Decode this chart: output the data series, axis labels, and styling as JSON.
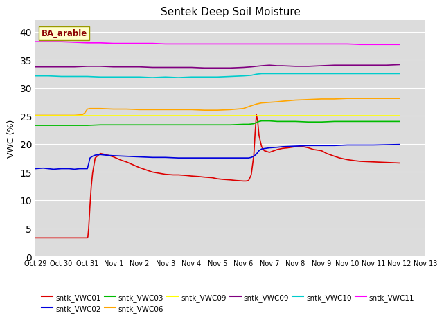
{
  "title": "Sentek Deep Soil Moisture",
  "ylabel": "VWC (%)",
  "annotation": "BA_arable",
  "ylim": [
    0,
    42
  ],
  "yticks": [
    0,
    5,
    10,
    15,
    20,
    25,
    30,
    35,
    40
  ],
  "background_color": "#dcdcdc",
  "xtick_labels": [
    "Oct 29",
    "Oct 30",
    "Oct 31",
    "Nov 1",
    "Nov 2",
    "Nov 3",
    "Nov 4",
    "Nov 5",
    "Nov 6",
    "Nov 7",
    "Nov 8",
    "Nov 9",
    "Nov 10",
    "Nov 11",
    "Nov 12",
    "Nov 13"
  ],
  "series": [
    {
      "name": "sntk_VWC01",
      "color": "#dd0000",
      "points": [
        [
          0,
          3.3
        ],
        [
          1,
          3.3
        ],
        [
          2,
          3.3
        ],
        [
          2.02,
          3.5
        ],
        [
          2.05,
          5.0
        ],
        [
          2.1,
          9.0
        ],
        [
          2.15,
          12.5
        ],
        [
          2.2,
          14.8
        ],
        [
          2.3,
          17.5
        ],
        [
          2.5,
          18.3
        ],
        [
          2.7,
          18.1
        ],
        [
          3.0,
          17.7
        ],
        [
          3.3,
          17.1
        ],
        [
          3.5,
          16.8
        ],
        [
          4.0,
          15.8
        ],
        [
          4.5,
          15.0
        ],
        [
          5.0,
          14.6
        ],
        [
          5.3,
          14.5
        ],
        [
          5.5,
          14.5
        ],
        [
          5.8,
          14.4
        ],
        [
          6.0,
          14.3
        ],
        [
          6.3,
          14.2
        ],
        [
          6.5,
          14.1
        ],
        [
          6.8,
          14.0
        ],
        [
          7.0,
          13.8
        ],
        [
          7.2,
          13.7
        ],
        [
          7.5,
          13.6
        ],
        [
          7.7,
          13.5
        ],
        [
          8.0,
          13.4
        ],
        [
          8.1,
          13.4
        ],
        [
          8.2,
          13.5
        ],
        [
          8.3,
          14.5
        ],
        [
          8.4,
          18.0
        ],
        [
          8.45,
          22.0
        ],
        [
          8.5,
          25.2
        ],
        [
          8.55,
          24.0
        ],
        [
          8.6,
          21.5
        ],
        [
          8.7,
          19.5
        ],
        [
          8.8,
          18.8
        ],
        [
          9.0,
          18.5
        ],
        [
          9.3,
          19.0
        ],
        [
          9.5,
          19.2
        ],
        [
          9.7,
          19.3
        ],
        [
          10.0,
          19.5
        ],
        [
          10.3,
          19.5
        ],
        [
          10.5,
          19.3
        ],
        [
          10.7,
          19.0
        ],
        [
          11.0,
          18.8
        ],
        [
          11.2,
          18.3
        ],
        [
          11.5,
          17.8
        ],
        [
          11.7,
          17.5
        ],
        [
          12.0,
          17.2
        ],
        [
          12.3,
          17.0
        ],
        [
          12.5,
          16.9
        ],
        [
          13.0,
          16.8
        ],
        [
          13.5,
          16.7
        ],
        [
          14.0,
          16.6
        ]
      ]
    },
    {
      "name": "sntk_VWC02",
      "color": "#0000dd",
      "points": [
        [
          0,
          15.6
        ],
        [
          0.3,
          15.7
        ],
        [
          0.5,
          15.6
        ],
        [
          0.7,
          15.5
        ],
        [
          1.0,
          15.6
        ],
        [
          1.3,
          15.6
        ],
        [
          1.5,
          15.5
        ],
        [
          1.7,
          15.6
        ],
        [
          2.0,
          15.6
        ],
        [
          2.05,
          16.5
        ],
        [
          2.1,
          17.5
        ],
        [
          2.2,
          17.8
        ],
        [
          2.3,
          18.0
        ],
        [
          2.5,
          18.1
        ],
        [
          2.7,
          18.0
        ],
        [
          3.0,
          17.9
        ],
        [
          3.5,
          17.8
        ],
        [
          4.0,
          17.7
        ],
        [
          4.5,
          17.6
        ],
        [
          5.0,
          17.6
        ],
        [
          5.5,
          17.5
        ],
        [
          6.0,
          17.5
        ],
        [
          6.5,
          17.5
        ],
        [
          7.0,
          17.5
        ],
        [
          7.5,
          17.5
        ],
        [
          8.0,
          17.5
        ],
        [
          8.2,
          17.5
        ],
        [
          8.3,
          17.6
        ],
        [
          8.4,
          17.8
        ],
        [
          8.5,
          18.2
        ],
        [
          8.6,
          18.8
        ],
        [
          8.7,
          19.1
        ],
        [
          9.0,
          19.3
        ],
        [
          9.3,
          19.4
        ],
        [
          9.5,
          19.5
        ],
        [
          10.0,
          19.6
        ],
        [
          10.5,
          19.7
        ],
        [
          11.0,
          19.7
        ],
        [
          11.5,
          19.7
        ],
        [
          12.0,
          19.8
        ],
        [
          13.0,
          19.8
        ],
        [
          14.0,
          19.9
        ]
      ]
    },
    {
      "name": "sntk_VWC03",
      "color": "#00bb00",
      "points": [
        [
          0,
          23.3
        ],
        [
          0.5,
          23.3
        ],
        [
          1,
          23.3
        ],
        [
          1.5,
          23.3
        ],
        [
          2,
          23.3
        ],
        [
          2.5,
          23.4
        ],
        [
          3,
          23.4
        ],
        [
          3.5,
          23.4
        ],
        [
          4,
          23.4
        ],
        [
          4.5,
          23.4
        ],
        [
          5,
          23.4
        ],
        [
          5.5,
          23.4
        ],
        [
          6,
          23.4
        ],
        [
          6.5,
          23.4
        ],
        [
          7,
          23.4
        ],
        [
          7.5,
          23.4
        ],
        [
          8.0,
          23.5
        ],
        [
          8.2,
          23.5
        ],
        [
          8.4,
          23.6
        ],
        [
          8.5,
          23.8
        ],
        [
          8.6,
          24.0
        ],
        [
          8.7,
          24.1
        ],
        [
          9.0,
          24.1
        ],
        [
          9.3,
          24.0
        ],
        [
          9.5,
          24.0
        ],
        [
          10.0,
          24.0
        ],
        [
          10.5,
          23.9
        ],
        [
          11.0,
          23.9
        ],
        [
          11.5,
          24.0
        ],
        [
          12.0,
          24.0
        ],
        [
          12.5,
          24.0
        ],
        [
          13.0,
          24.0
        ],
        [
          14.0,
          24.0
        ]
      ]
    },
    {
      "name": "sntk_VWC06",
      "color": "#ffa500",
      "points": [
        [
          0,
          25.1
        ],
        [
          0.5,
          25.1
        ],
        [
          1.0,
          25.1
        ],
        [
          1.5,
          25.1
        ],
        [
          1.8,
          25.2
        ],
        [
          1.9,
          25.5
        ],
        [
          2.0,
          26.2
        ],
        [
          2.1,
          26.3
        ],
        [
          2.3,
          26.3
        ],
        [
          2.5,
          26.3
        ],
        [
          3,
          26.2
        ],
        [
          3.5,
          26.2
        ],
        [
          4,
          26.1
        ],
        [
          4.5,
          26.1
        ],
        [
          5,
          26.1
        ],
        [
          5.5,
          26.1
        ],
        [
          6,
          26.1
        ],
        [
          6.5,
          26.0
        ],
        [
          7,
          26.0
        ],
        [
          7.5,
          26.1
        ],
        [
          8,
          26.3
        ],
        [
          8.3,
          26.8
        ],
        [
          8.5,
          27.1
        ],
        [
          8.7,
          27.3
        ],
        [
          9.0,
          27.4
        ],
        [
          9.3,
          27.5
        ],
        [
          9.5,
          27.6
        ],
        [
          10.0,
          27.8
        ],
        [
          10.5,
          27.9
        ],
        [
          11.0,
          28.0
        ],
        [
          11.5,
          28.0
        ],
        [
          12.0,
          28.1
        ],
        [
          13.0,
          28.1
        ],
        [
          14.0,
          28.1
        ]
      ]
    },
    {
      "name": "sntk_VWC09",
      "color": "#ffff00",
      "points": [
        [
          0,
          25.0
        ],
        [
          14,
          25.0
        ]
      ]
    },
    {
      "name": "sntk_VWC09",
      "color": "#800080",
      "points": [
        [
          0,
          33.7
        ],
        [
          0.5,
          33.7
        ],
        [
          1,
          33.7
        ],
        [
          1.5,
          33.7
        ],
        [
          2,
          33.8
        ],
        [
          2.5,
          33.8
        ],
        [
          3,
          33.7
        ],
        [
          3.5,
          33.7
        ],
        [
          4,
          33.7
        ],
        [
          4.5,
          33.6
        ],
        [
          5,
          33.6
        ],
        [
          5.5,
          33.6
        ],
        [
          6,
          33.6
        ],
        [
          6.5,
          33.5
        ],
        [
          7,
          33.5
        ],
        [
          7.5,
          33.5
        ],
        [
          8.0,
          33.6
        ],
        [
          8.3,
          33.7
        ],
        [
          8.5,
          33.8
        ],
        [
          8.7,
          33.9
        ],
        [
          9.0,
          34.0
        ],
        [
          9.3,
          33.9
        ],
        [
          9.5,
          33.9
        ],
        [
          10.0,
          33.8
        ],
        [
          10.5,
          33.8
        ],
        [
          11.0,
          33.9
        ],
        [
          11.5,
          34.0
        ],
        [
          12.0,
          34.0
        ],
        [
          12.5,
          34.0
        ],
        [
          13.0,
          34.0
        ],
        [
          13.5,
          34.0
        ],
        [
          14.0,
          34.1
        ]
      ]
    },
    {
      "name": "sntk_VWC10",
      "color": "#00cccc",
      "points": [
        [
          0,
          32.1
        ],
        [
          0.5,
          32.1
        ],
        [
          1,
          32.0
        ],
        [
          1.5,
          32.0
        ],
        [
          2,
          32.0
        ],
        [
          2.5,
          31.9
        ],
        [
          3,
          31.9
        ],
        [
          3.5,
          31.9
        ],
        [
          4,
          31.9
        ],
        [
          4.5,
          31.8
        ],
        [
          5,
          31.9
        ],
        [
          5.5,
          31.8
        ],
        [
          6,
          31.9
        ],
        [
          6.5,
          31.9
        ],
        [
          7,
          31.9
        ],
        [
          7.5,
          32.0
        ],
        [
          8.0,
          32.1
        ],
        [
          8.3,
          32.2
        ],
        [
          8.5,
          32.4
        ],
        [
          8.7,
          32.5
        ],
        [
          9.0,
          32.5
        ],
        [
          9.5,
          32.5
        ],
        [
          10.0,
          32.5
        ],
        [
          10.5,
          32.5
        ],
        [
          11.0,
          32.5
        ],
        [
          11.5,
          32.5
        ],
        [
          12.0,
          32.5
        ],
        [
          12.5,
          32.5
        ],
        [
          13.0,
          32.5
        ],
        [
          14.0,
          32.5
        ]
      ]
    },
    {
      "name": "sntk_VWC11",
      "color": "#ff00ff",
      "points": [
        [
          0,
          38.2
        ],
        [
          0.5,
          38.2
        ],
        [
          1,
          38.2
        ],
        [
          1.5,
          38.1
        ],
        [
          2,
          38.0
        ],
        [
          2.5,
          38.0
        ],
        [
          3,
          37.9
        ],
        [
          3.5,
          37.9
        ],
        [
          4,
          37.9
        ],
        [
          4.5,
          37.9
        ],
        [
          5,
          37.8
        ],
        [
          5.5,
          37.8
        ],
        [
          6,
          37.8
        ],
        [
          6.5,
          37.8
        ],
        [
          7,
          37.8
        ],
        [
          7.5,
          37.8
        ],
        [
          8.0,
          37.8
        ],
        [
          8.5,
          37.8
        ],
        [
          9.0,
          37.8
        ],
        [
          9.5,
          37.8
        ],
        [
          10.0,
          37.8
        ],
        [
          10.5,
          37.8
        ],
        [
          11.0,
          37.8
        ],
        [
          11.5,
          37.8
        ],
        [
          12.0,
          37.8
        ],
        [
          12.5,
          37.7
        ],
        [
          13.0,
          37.7
        ],
        [
          14.0,
          37.7
        ]
      ]
    }
  ],
  "legend": [
    {
      "name": "sntk_VWC01",
      "color": "#dd0000"
    },
    {
      "name": "sntk_VWC02",
      "color": "#0000dd"
    },
    {
      "name": "sntk_VWC03",
      "color": "#00bb00"
    },
    {
      "name": "sntk_VWC06",
      "color": "#ffa500"
    },
    {
      "name": "sntk_VWC09",
      "color": "#ffff00"
    },
    {
      "name": "sntk_VWC09",
      "color": "#800080"
    },
    {
      "name": "sntk_VWC10",
      "color": "#00cccc"
    },
    {
      "name": "sntk_VWC11",
      "color": "#ff00ff"
    }
  ]
}
